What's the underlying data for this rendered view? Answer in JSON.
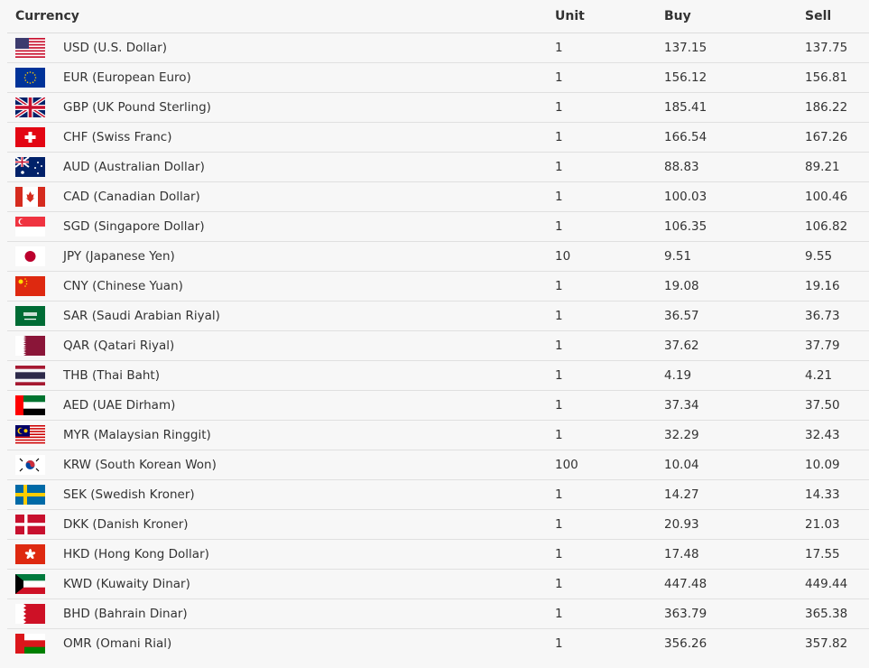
{
  "headers": {
    "currency": "Currency",
    "unit": "Unit",
    "buy": "Buy",
    "sell": "Sell"
  },
  "rows": [
    {
      "code": "USD",
      "name": "USD (U.S. Dollar)",
      "unit": "1",
      "buy": "137.15",
      "sell": "137.75",
      "flag_icon": "us-flag"
    },
    {
      "code": "EUR",
      "name": "EUR (European Euro)",
      "unit": "1",
      "buy": "156.12",
      "sell": "156.81",
      "flag_icon": "eu-flag"
    },
    {
      "code": "GBP",
      "name": "GBP (UK Pound Sterling)",
      "unit": "1",
      "buy": "185.41",
      "sell": "186.22",
      "flag_icon": "uk-flag"
    },
    {
      "code": "CHF",
      "name": "CHF (Swiss Franc)",
      "unit": "1",
      "buy": "166.54",
      "sell": "167.26",
      "flag_icon": "swiss-flag"
    },
    {
      "code": "AUD",
      "name": "AUD (Australian Dollar)",
      "unit": "1",
      "buy": "88.83",
      "sell": "89.21",
      "flag_icon": "australia-flag"
    },
    {
      "code": "CAD",
      "name": "CAD (Canadian Dollar)",
      "unit": "1",
      "buy": "100.03",
      "sell": "100.46",
      "flag_icon": "canada-flag"
    },
    {
      "code": "SGD",
      "name": "SGD (Singapore Dollar)",
      "unit": "1",
      "buy": "106.35",
      "sell": "106.82",
      "flag_icon": "singapore-flag"
    },
    {
      "code": "JPY",
      "name": "JPY (Japanese Yen)",
      "unit": "10",
      "buy": "9.51",
      "sell": "9.55",
      "flag_icon": "japan-flag"
    },
    {
      "code": "CNY",
      "name": "CNY (Chinese Yuan)",
      "unit": "1",
      "buy": "19.08",
      "sell": "19.16",
      "flag_icon": "china-flag"
    },
    {
      "code": "SAR",
      "name": "SAR (Saudi Arabian Riyal)",
      "unit": "1",
      "buy": "36.57",
      "sell": "36.73",
      "flag_icon": "saudi-flag"
    },
    {
      "code": "QAR",
      "name": "QAR (Qatari Riyal)",
      "unit": "1",
      "buy": "37.62",
      "sell": "37.79",
      "flag_icon": "qatar-flag"
    },
    {
      "code": "THB",
      "name": "THB (Thai Baht)",
      "unit": "1",
      "buy": "4.19",
      "sell": "4.21",
      "flag_icon": "thailand-flag"
    },
    {
      "code": "AED",
      "name": "AED (UAE Dirham)",
      "unit": "1",
      "buy": "37.34",
      "sell": "37.50",
      "flag_icon": "uae-flag"
    },
    {
      "code": "MYR",
      "name": "MYR (Malaysian Ringgit)",
      "unit": "1",
      "buy": "32.29",
      "sell": "32.43",
      "flag_icon": "malaysia-flag"
    },
    {
      "code": "KRW",
      "name": "KRW (South Korean Won)",
      "unit": "100",
      "buy": "10.04",
      "sell": "10.09",
      "flag_icon": "korea-flag"
    },
    {
      "code": "SEK",
      "name": "SEK (Swedish Kroner)",
      "unit": "1",
      "buy": "14.27",
      "sell": "14.33",
      "flag_icon": "sweden-flag"
    },
    {
      "code": "DKK",
      "name": "DKK (Danish Kroner)",
      "unit": "1",
      "buy": "20.93",
      "sell": "21.03",
      "flag_icon": "denmark-flag"
    },
    {
      "code": "HKD",
      "name": "HKD (Hong Kong Dollar)",
      "unit": "1",
      "buy": "17.48",
      "sell": "17.55",
      "flag_icon": "hongkong-flag"
    },
    {
      "code": "KWD",
      "name": "KWD (Kuwaity Dinar)",
      "unit": "1",
      "buy": "447.48",
      "sell": "449.44",
      "flag_icon": "kuwait-flag"
    },
    {
      "code": "BHD",
      "name": "BHD (Bahrain Dinar)",
      "unit": "1",
      "buy": "363.79",
      "sell": "365.38",
      "flag_icon": "bahrain-flag"
    },
    {
      "code": "OMR",
      "name": "OMR (Omani Rial)",
      "unit": "1",
      "buy": "356.26",
      "sell": "357.82",
      "flag_icon": "oman-flag"
    }
  ]
}
